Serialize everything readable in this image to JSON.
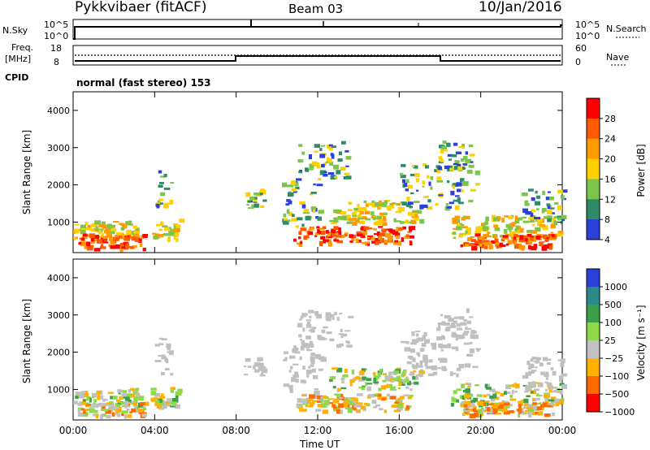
{
  "header": {
    "station": "Pykkvibaer (fitACF)",
    "beam": "Beam 03",
    "date": "10/Jan/2016"
  },
  "nsky_panel": {
    "left_label": "N.Sky",
    "left_ticks": [
      "10^5",
      "10^0"
    ],
    "right_ticks": [
      "10^5",
      "10^0"
    ],
    "right_label": "N.Search"
  },
  "freq_panel": {
    "left_label_top": "Freq.",
    "left_label_bottom": "[MHz]",
    "left_ticks": [
      "18",
      "8"
    ],
    "right_ticks": [
      "60",
      "0"
    ],
    "right_label": "Nave",
    "cpid_label": "CPID",
    "mode": "normal (fast stereo) 153"
  },
  "chart_data": [
    {
      "type": "heatmap",
      "name": "power-panel",
      "ylabel": "Slant Range [km]",
      "yticks": [
        "4000",
        "3000",
        "2000",
        "1000"
      ],
      "xticks": [
        "00:00",
        "04:00",
        "08:00",
        "12:00",
        "16:00",
        "20:00",
        "00:00"
      ],
      "xlabel": "",
      "ylim": [
        180,
        4500
      ],
      "colorbar": {
        "label": "Power [dB]",
        "ticks": [
          "28",
          "24",
          "20",
          "16",
          "12",
          "8",
          "4"
        ],
        "colors": [
          "#ff0000",
          "#ff5a00",
          "#ff9a00",
          "#ffd000",
          "#7bc64a",
          "#2f8a68",
          "#2a40d8"
        ]
      }
    },
    {
      "type": "heatmap",
      "name": "velocity-panel",
      "ylabel": "Slant Range [km]",
      "yticks": [
        "4000",
        "3000",
        "2000",
        "1000"
      ],
      "xticks": [
        "00:00",
        "04:00",
        "08:00",
        "12:00",
        "16:00",
        "20:00",
        "00:00"
      ],
      "xlabel": "Time UT",
      "ylim": [
        180,
        4500
      ],
      "colorbar": {
        "label": "Velocity [m s⁻¹]",
        "ticks": [
          "1000",
          "500",
          "100",
          "25",
          "−25",
          "−100",
          "−500",
          "−1000"
        ],
        "colors": [
          "#2a40d8",
          "#2a8a8a",
          "#3aa04a",
          "#8fd84a",
          "#c0c0c0",
          "#ffb000",
          "#ff6a00",
          "#ff0000"
        ]
      }
    }
  ]
}
